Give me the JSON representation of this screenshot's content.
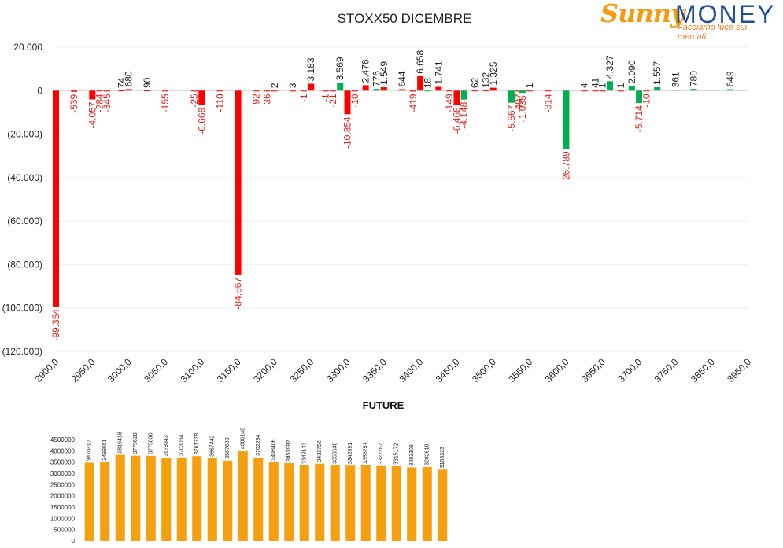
{
  "logo": {
    "brand_part1": "Sunny",
    "brand_part2": "MONEY",
    "tagline": "Facciamo luce sui mercati"
  },
  "colors": {
    "negative": "#ff0000",
    "positive": "#00b050",
    "future_bar": "#f5a010",
    "negative_label": "#e0201c",
    "positive_label": "#222222"
  },
  "chart_data": [
    {
      "type": "bar",
      "title": "STOXX50 DICEMBRE",
      "ylim": [
        -120000,
        20000
      ],
      "y_ticks": [
        20000,
        0,
        -20000,
        -40000,
        -60000,
        -80000,
        -100000,
        -120000
      ],
      "y_tick_labels": [
        "20.000",
        "0",
        "(20.000)",
        "(40.000)",
        "(60.000)",
        "(80.000)",
        "(100.000)",
        "(120.000)"
      ],
      "x_ticks": [
        2900,
        2950,
        3000,
        3050,
        3100,
        3150,
        3200,
        3250,
        3300,
        3350,
        3400,
        3450,
        3500,
        3550,
        3600,
        3650,
        3700,
        3750,
        3850,
        3950
      ],
      "x_tick_labels": [
        "2900,0",
        "2950,0",
        "3000,0",
        "3050,0",
        "3100,0",
        "3150,0",
        "3200,0",
        "3250,0",
        "3300,0",
        "3350,0",
        "3400,0",
        "3450,0",
        "3500,0",
        "3550,0",
        "3600,0",
        "3650,0",
        "3700,0",
        "3750,0",
        "3850,0",
        "3950,0"
      ],
      "grid": true,
      "bars": [
        {
          "x": 2900,
          "value": -99354,
          "label": "-99.354"
        },
        {
          "x": 2925,
          "value": -539,
          "label": "-539"
        },
        {
          "x": 2950,
          "value": -4057,
          "label": "-4.057"
        },
        {
          "x": 2960,
          "value": -284,
          "label": "-284"
        },
        {
          "x": 2970,
          "value": -345,
          "label": "-345"
        },
        {
          "x": 2990,
          "value": 74,
          "label": "74"
        },
        {
          "x": 3000,
          "value": 680,
          "label": "680"
        },
        {
          "x": 3025,
          "value": 90,
          "label": "90"
        },
        {
          "x": 3050,
          "value": -155,
          "label": "-155"
        },
        {
          "x": 3090,
          "value": -25,
          "label": "-25"
        },
        {
          "x": 3100,
          "value": -6669,
          "label": "-6.669"
        },
        {
          "x": 3125,
          "value": -110,
          "label": "-110"
        },
        {
          "x": 3150,
          "value": -84867,
          "label": "-84.867"
        },
        {
          "x": 3175,
          "value": -92,
          "label": "-92"
        },
        {
          "x": 3190,
          "value": -36,
          "label": "-36"
        },
        {
          "x": 3200,
          "value": 2,
          "label": "2"
        },
        {
          "x": 3225,
          "value": 3,
          "label": "3"
        },
        {
          "x": 3240,
          "value": -1,
          "label": "-1"
        },
        {
          "x": 3250,
          "value": 3183,
          "label": "3.183"
        },
        {
          "x": 3270,
          "value": -1,
          "label": "-1"
        },
        {
          "x": 3280,
          "value": -21,
          "label": "-21"
        },
        {
          "x": 3290,
          "value": 3569,
          "label": "3.569"
        },
        {
          "x": 3300,
          "value": -10854,
          "label": "-10.854"
        },
        {
          "x": 3310,
          "value": -10,
          "label": "-10"
        },
        {
          "x": 3325,
          "value": 2476,
          "label": "2.476"
        },
        {
          "x": 3340,
          "value": 776,
          "label": "776"
        },
        {
          "x": 3350,
          "value": 1549,
          "label": "1.549"
        },
        {
          "x": 3375,
          "value": 644,
          "label": "644"
        },
        {
          "x": 3390,
          "value": -419,
          "label": "-419"
        },
        {
          "x": 3400,
          "value": 6658,
          "label": "6.658"
        },
        {
          "x": 3410,
          "value": 18,
          "label": "18"
        },
        {
          "x": 3425,
          "value": 1741,
          "label": "1.741"
        },
        {
          "x": 3440,
          "value": -149,
          "label": "-149"
        },
        {
          "x": 3450,
          "value": -6468,
          "label": "-6.468"
        },
        {
          "x": 3460,
          "value": -4148,
          "label": "-4.148"
        },
        {
          "x": 3475,
          "value": 62,
          "label": "62"
        },
        {
          "x": 3490,
          "value": 132,
          "label": "132"
        },
        {
          "x": 3500,
          "value": 1325,
          "label": "1.325"
        },
        {
          "x": 3525,
          "value": -5567,
          "label": "-5.567"
        },
        {
          "x": 3535,
          "value": -407,
          "label": "-407"
        },
        {
          "x": 3540,
          "value": -1035,
          "label": "-1.035"
        },
        {
          "x": 3550,
          "value": 1,
          "label": "1"
        },
        {
          "x": 3575,
          "value": -314,
          "label": "-314"
        },
        {
          "x": 3600,
          "value": -26789,
          "label": "-26.789"
        },
        {
          "x": 3625,
          "value": 4,
          "label": "4"
        },
        {
          "x": 3640,
          "value": 41,
          "label": "41"
        },
        {
          "x": 3650,
          "value": 1,
          "label": "1"
        },
        {
          "x": 3660,
          "value": 4327,
          "label": "4.327"
        },
        {
          "x": 3675,
          "value": 1,
          "label": "1"
        },
        {
          "x": 3690,
          "value": 2090,
          "label": "2.090"
        },
        {
          "x": 3700,
          "value": -5714,
          "label": "-5.714"
        },
        {
          "x": 3710,
          "value": -10,
          "label": "-10"
        },
        {
          "x": 3725,
          "value": 1557,
          "label": "1.557"
        },
        {
          "x": 3750,
          "value": 361,
          "label": "361"
        },
        {
          "x": 3800,
          "value": 780,
          "label": "780"
        },
        {
          "x": 3900,
          "value": 649,
          "label": "649"
        }
      ]
    },
    {
      "type": "bar",
      "title": "FUTURE",
      "ylim": [
        0,
        4500000
      ],
      "y_ticks": [
        0,
        500000,
        1000000,
        1500000,
        2000000,
        2500000,
        3000000,
        3500000,
        4000000,
        4500000
      ],
      "y_tick_labels": [
        "0",
        "500000",
        "1000000",
        "1500000",
        "2000000",
        "2500000",
        "3000000",
        "3500000",
        "4000000",
        "4500000"
      ],
      "values": [
        3470497,
        3499651,
        3816418,
        3779628,
        3775036,
        3679343,
        3703064,
        3761778,
        3667342,
        3567683,
        4006148,
        3702234,
        3498406,
        3453982,
        3349133,
        3432752,
        3353638,
        3342891,
        3356251,
        3322287,
        3315172,
        3263303,
        3282619,
        3163323
      ],
      "labels": [
        "3470497",
        "3499651",
        "3816418",
        "3779628",
        "3775036",
        "3679343",
        "3703064",
        "3761778",
        "3667342",
        "3567683",
        "4006148",
        "3702234",
        "3498406",
        "3453982",
        "3349133",
        "3432752",
        "3353638",
        "3342891",
        "3356251",
        "3322287",
        "3315172",
        "3263303",
        "3282619",
        "3163323"
      ]
    }
  ]
}
